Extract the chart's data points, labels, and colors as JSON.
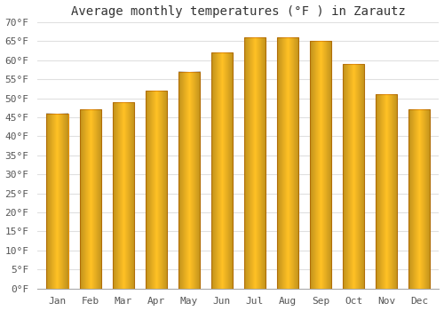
{
  "months": [
    "Jan",
    "Feb",
    "Mar",
    "Apr",
    "May",
    "Jun",
    "Jul",
    "Aug",
    "Sep",
    "Oct",
    "Nov",
    "Dec"
  ],
  "values": [
    46,
    47,
    49,
    52,
    57,
    62,
    66,
    66,
    65,
    59,
    51,
    47
  ],
  "bar_color_light": "#FFD966",
  "bar_color_mid": "#FFC125",
  "bar_color_dark": "#E8900A",
  "title": "Average monthly temperatures (°F ) in Zarautz",
  "ylim": [
    0,
    70
  ],
  "yticks": [
    0,
    5,
    10,
    15,
    20,
    25,
    30,
    35,
    40,
    45,
    50,
    55,
    60,
    65,
    70
  ],
  "ytick_labels": [
    "0°F",
    "5°F",
    "10°F",
    "15°F",
    "20°F",
    "25°F",
    "30°F",
    "35°F",
    "40°F",
    "45°F",
    "50°F",
    "55°F",
    "60°F",
    "65°F",
    "70°F"
  ],
  "background_color": "#ffffff",
  "grid_color": "#e0e0e0",
  "title_fontsize": 10,
  "tick_fontsize": 8
}
